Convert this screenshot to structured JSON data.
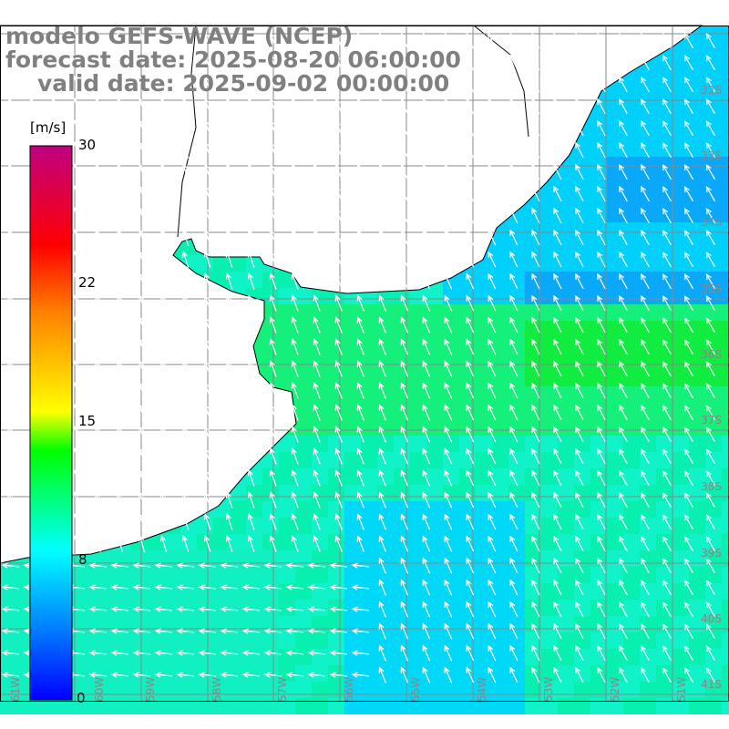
{
  "title": {
    "line1": "modelo GEFS-WAVE (NCEP)",
    "line2": "forecast date: 2025-08-20 06:00:00",
    "line3": "valid date: 2025-09-02 00:00:00"
  },
  "colorbar": {
    "unit": "[m/s]",
    "ticks": [
      "30",
      "22",
      "15",
      "8",
      "0"
    ],
    "colors": [
      "#0000ff",
      "#0080ff",
      "#00ffff",
      "#00ff00",
      "#ffff00",
      "#ff8000",
      "#ff0000",
      "#c00080"
    ]
  },
  "lat_labels": [
    "32S",
    "33S",
    "34S",
    "35S",
    "36S",
    "37S",
    "38S",
    "39S",
    "40S",
    "41S"
  ],
  "lon_labels": [
    "61W",
    "60W",
    "59W",
    "58W",
    "57W",
    "56W",
    "55W",
    "54W",
    "53W",
    "52W",
    "51W"
  ]
}
